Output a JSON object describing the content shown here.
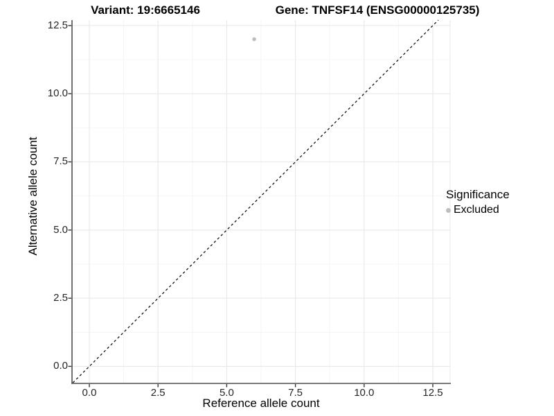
{
  "chart_data": {
    "type": "scatter",
    "title_left": "Variant: 19:6665146",
    "title_right": "Gene: TNFSF14 (ENSG00000125735)",
    "xlabel": "Reference allele count",
    "ylabel": "Alternative allele count",
    "xlim": [
      -0.63,
      13.13
    ],
    "ylim": [
      -0.6,
      12.7
    ],
    "x_ticks": [
      0,
      2.5,
      5,
      7.5,
      10,
      12.5
    ],
    "y_ticks": [
      0,
      2.5,
      5,
      7.5,
      10,
      12.5
    ],
    "x_tick_labels": [
      "0.0",
      "2.5",
      "5.0",
      "7.5",
      "10.0",
      "12.5"
    ],
    "y_tick_labels": [
      "0.0",
      "2.5",
      "5.0",
      "7.5",
      "10.0",
      "12.5"
    ],
    "x_minor_ticks": [
      1.25,
      3.75,
      6.25,
      8.75,
      11.25
    ],
    "y_minor_ticks": [
      1.25,
      3.75,
      6.25,
      8.75,
      11.25
    ],
    "grid": true,
    "legend_position": "right",
    "points": [
      {
        "x": 6,
        "y": 12,
        "significance": "Excluded"
      }
    ],
    "reference_line": {
      "type": "identity",
      "slope": 1,
      "intercept": 0,
      "style": "dashed"
    },
    "legend": {
      "title": "Significance",
      "items": [
        {
          "label": "Excluded",
          "color": "#bebebe"
        }
      ]
    },
    "colors": {
      "point_excluded": "#bebebe",
      "grid_major": "#e8e8e8",
      "grid_minor": "#f4f4f4",
      "axis_line": "#4d4d4d",
      "tick_mark": "#333333",
      "reference_line": "#111111",
      "text": "#000000",
      "tick_text": "#262626",
      "background": "#ffffff"
    }
  }
}
